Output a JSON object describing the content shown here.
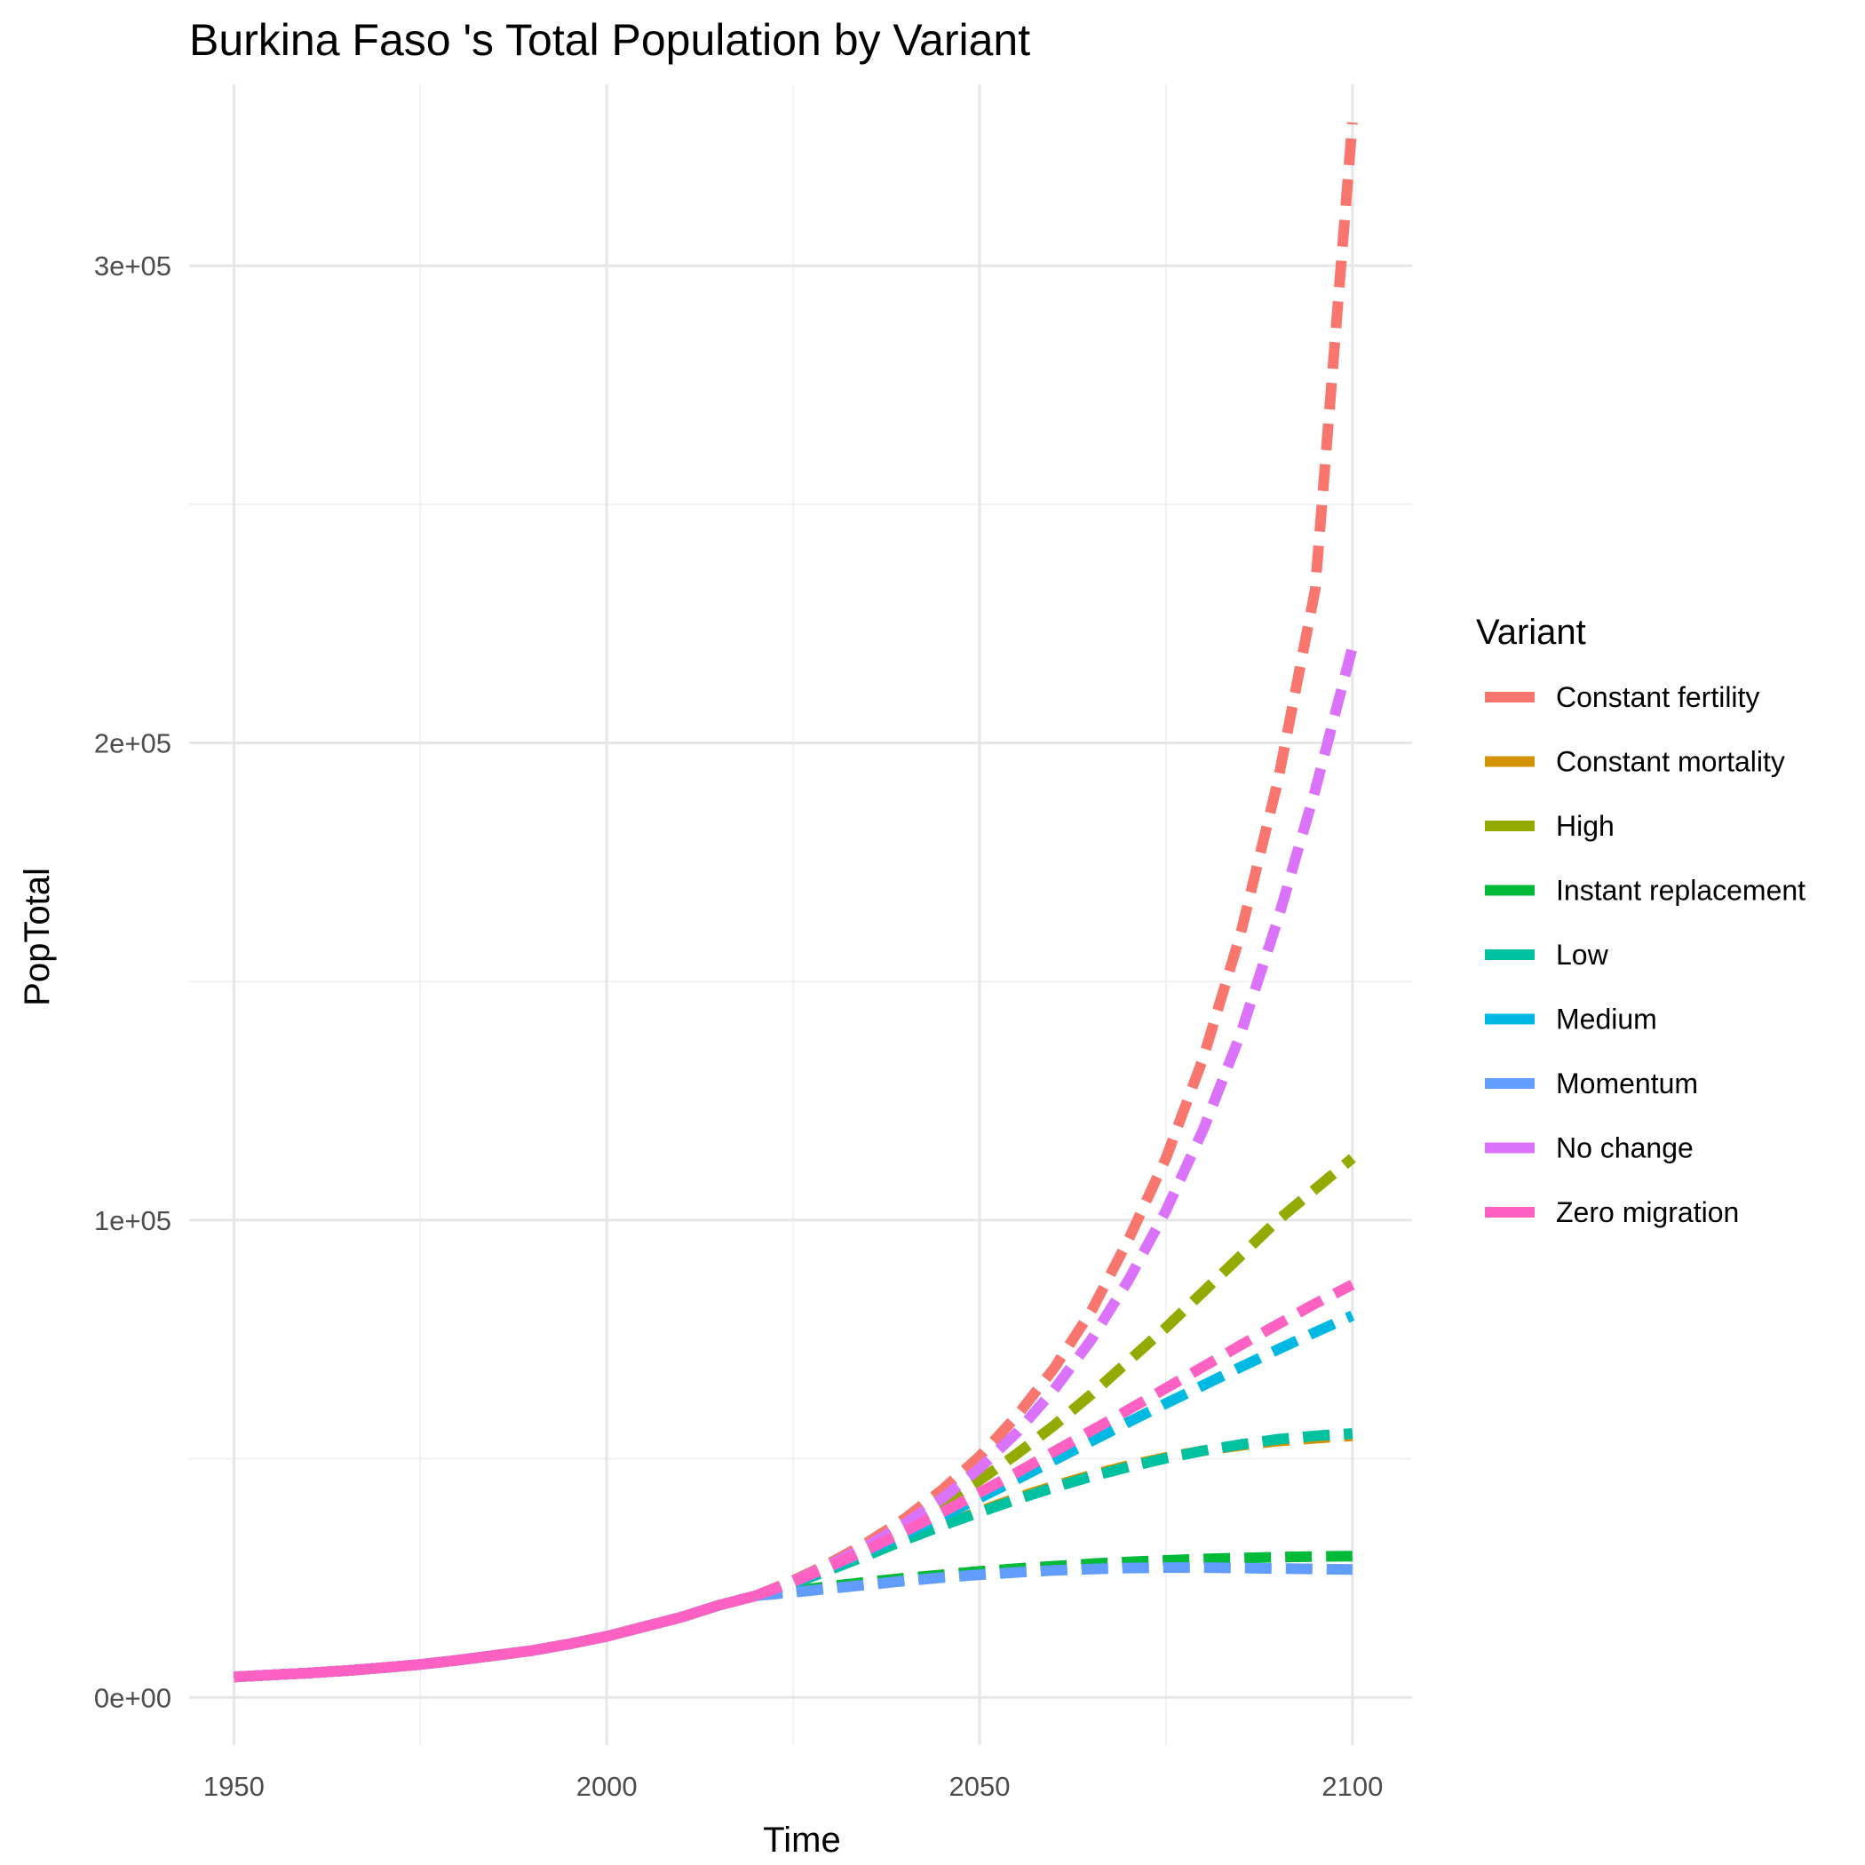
{
  "chart_data": {
    "type": "line",
    "title": "Burkina Faso 's Total Population by Variant",
    "xlabel": "Time",
    "ylabel": "PopTotal",
    "xlim": [
      1944,
      2108
    ],
    "ylim": [
      -10000,
      338000
    ],
    "x_ticks": [
      1950,
      2000,
      2050,
      2100
    ],
    "x_tick_labels": [
      "1950",
      "2000",
      "2050",
      "2100"
    ],
    "y_ticks": [
      0,
      100000,
      200000,
      300000
    ],
    "y_tick_labels": [
      "0e+00",
      "1e+05",
      "2e+05",
      "3e+05"
    ],
    "grid": true,
    "legend": {
      "title": "Variant",
      "position": "right"
    },
    "history": {
      "x": [
        1950,
        1955,
        1960,
        1965,
        1970,
        1975,
        1980,
        1985,
        1990,
        1995,
        2000,
        2005,
        2010,
        2015,
        2020
      ],
      "values": [
        4300,
        4700,
        5100,
        5600,
        6200,
        6900,
        7800,
        8800,
        9800,
        11200,
        12800,
        14800,
        16800,
        19300,
        21300
      ]
    },
    "projection_x": [
      2020,
      2025,
      2030,
      2035,
      2040,
      2045,
      2050,
      2055,
      2060,
      2065,
      2070,
      2075,
      2080,
      2085,
      2090,
      2095,
      2100
    ],
    "series": [
      {
        "name": "Constant fertility",
        "color": "#F8766D",
        "values": [
          21300,
          24500,
          28200,
          32500,
          37500,
          43500,
          50500,
          59000,
          69000,
          81000,
          96000,
          113000,
          134000,
          160000,
          192000,
          232000,
          330000
        ]
      },
      {
        "name": "Constant mortality",
        "color": "#D39200",
        "values": [
          21300,
          24000,
          27000,
          30000,
          33000,
          36000,
          39000,
          41800,
          44300,
          46600,
          48600,
          50300,
          51700,
          52800,
          53700,
          54300,
          54800
        ]
      },
      {
        "name": "High",
        "color": "#93AA00",
        "values": [
          21300,
          24300,
          27700,
          31500,
          35800,
          40500,
          45500,
          51000,
          57000,
          63500,
          70500,
          77500,
          85000,
          92500,
          100000,
          106500,
          113000
        ]
      },
      {
        "name": "Instant replacement",
        "color": "#00BA38",
        "values": [
          21300,
          22300,
          23300,
          24200,
          25000,
          25700,
          26400,
          27000,
          27500,
          28000,
          28400,
          28700,
          29000,
          29200,
          29400,
          29500,
          29600
        ]
      },
      {
        "name": "Low",
        "color": "#00C19F",
        "values": [
          21300,
          23800,
          26800,
          29800,
          33000,
          36000,
          38800,
          41500,
          44000,
          46300,
          48300,
          50100,
          51700,
          53000,
          54100,
          54800,
          55300
        ]
      },
      {
        "name": "Medium",
        "color": "#00B9E3",
        "values": [
          21300,
          24100,
          27300,
          30700,
          34300,
          38000,
          41800,
          45700,
          49700,
          53700,
          57700,
          61600,
          65400,
          69200,
          72900,
          76500,
          80000
        ]
      },
      {
        "name": "Momentum",
        "color": "#619CFF",
        "values": [
          21300,
          22000,
          22800,
          23600,
          24400,
          25100,
          25700,
          26200,
          26600,
          26900,
          27100,
          27200,
          27200,
          27100,
          27000,
          26900,
          26800
        ]
      },
      {
        "name": "No change",
        "color": "#DB72FB",
        "values": [
          21300,
          24300,
          27800,
          31800,
          36400,
          41700,
          48000,
          55500,
          64500,
          75000,
          87500,
          102000,
          119000,
          139000,
          163000,
          190000,
          220000
        ]
      },
      {
        "name": "Zero migration",
        "color": "#FF61C3",
        "values": [
          21300,
          24200,
          27500,
          31000,
          34800,
          38800,
          42900,
          47100,
          51500,
          55900,
          60300,
          64800,
          69300,
          73800,
          78200,
          82500,
          86500
        ]
      }
    ]
  }
}
